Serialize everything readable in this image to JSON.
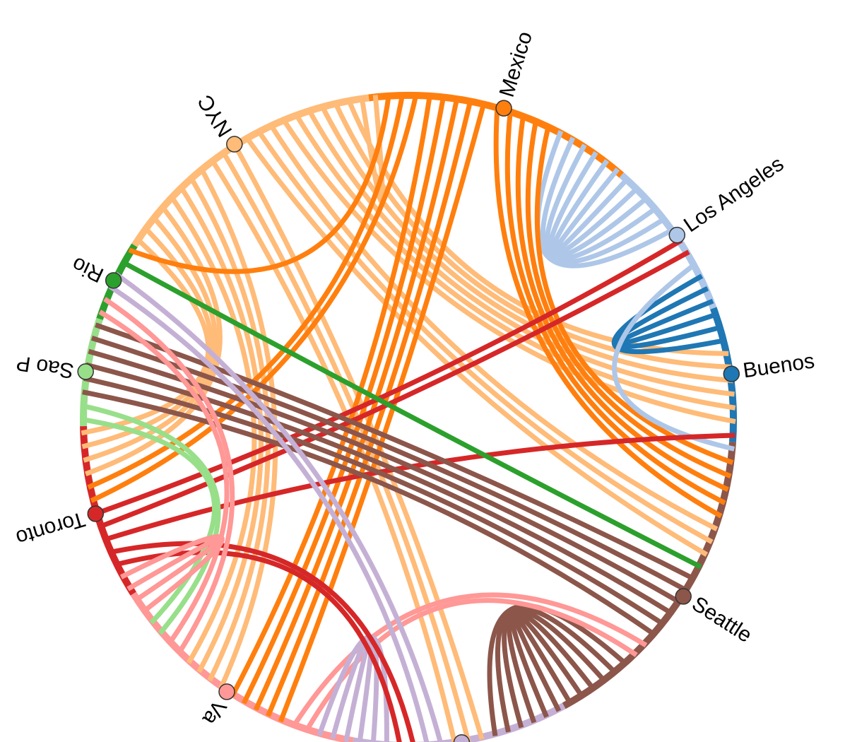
{
  "nodes": [
    {
      "label": "Mexico",
      "color": "#ff7f0e"
    },
    {
      "label": "Los Angeles",
      "color": "#aec7e8"
    },
    {
      "label": "Buenos",
      "color": "#1f77b4"
    },
    {
      "label": "Seattle",
      "color": "#8c564b"
    },
    {
      "label": null,
      "color": "#c5b0d5"
    },
    {
      "label": "Va",
      "color": "#ff9896"
    },
    {
      "label": "Toronto",
      "color": "#d62728"
    },
    {
      "label": "Sao P",
      "color": "#98df8a"
    },
    {
      "label": "Rio",
      "color": "#2ca02c"
    },
    {
      "label": "NYC",
      "color": "#ffbb78"
    }
  ],
  "links": [
    {
      "source": 9,
      "target": 0,
      "count": 1
    },
    {
      "source": 9,
      "target": 2,
      "count": 6
    },
    {
      "source": 9,
      "target": 3,
      "count": 3
    },
    {
      "source": 9,
      "target": 6,
      "count": 4
    },
    {
      "source": 9,
      "target": 5,
      "count": 4
    },
    {
      "source": 9,
      "target": 4,
      "count": 3
    },
    {
      "source": 1,
      "target": 0,
      "count": 6
    },
    {
      "source": 0,
      "target": 3,
      "count": 5
    },
    {
      "source": 0,
      "target": 5,
      "count": 5
    },
    {
      "source": 0,
      "target": 6,
      "count": 2
    },
    {
      "source": 0,
      "target": 8,
      "count": 1
    },
    {
      "source": 2,
      "target": 1,
      "count": 3
    },
    {
      "source": 6,
      "target": 1,
      "count": 2
    },
    {
      "source": 1,
      "target": 3,
      "count": 1
    },
    {
      "source": 6,
      "target": 2,
      "count": 1
    },
    {
      "source": 3,
      "target": 7,
      "count": 6
    },
    {
      "source": 3,
      "target": 4,
      "count": 6
    },
    {
      "source": 5,
      "target": 3,
      "count": 2
    },
    {
      "source": 8,
      "target": 3,
      "count": 1
    },
    {
      "source": 4,
      "target": 8,
      "count": 2
    },
    {
      "source": 4,
      "target": 5,
      "count": 3
    },
    {
      "source": 6,
      "target": 4,
      "count": 2
    },
    {
      "source": 7,
      "target": 5,
      "count": 2
    },
    {
      "source": 5,
      "target": 6,
      "count": 2
    },
    {
      "source": 5,
      "target": 8,
      "count": 2
    }
  ]
}
